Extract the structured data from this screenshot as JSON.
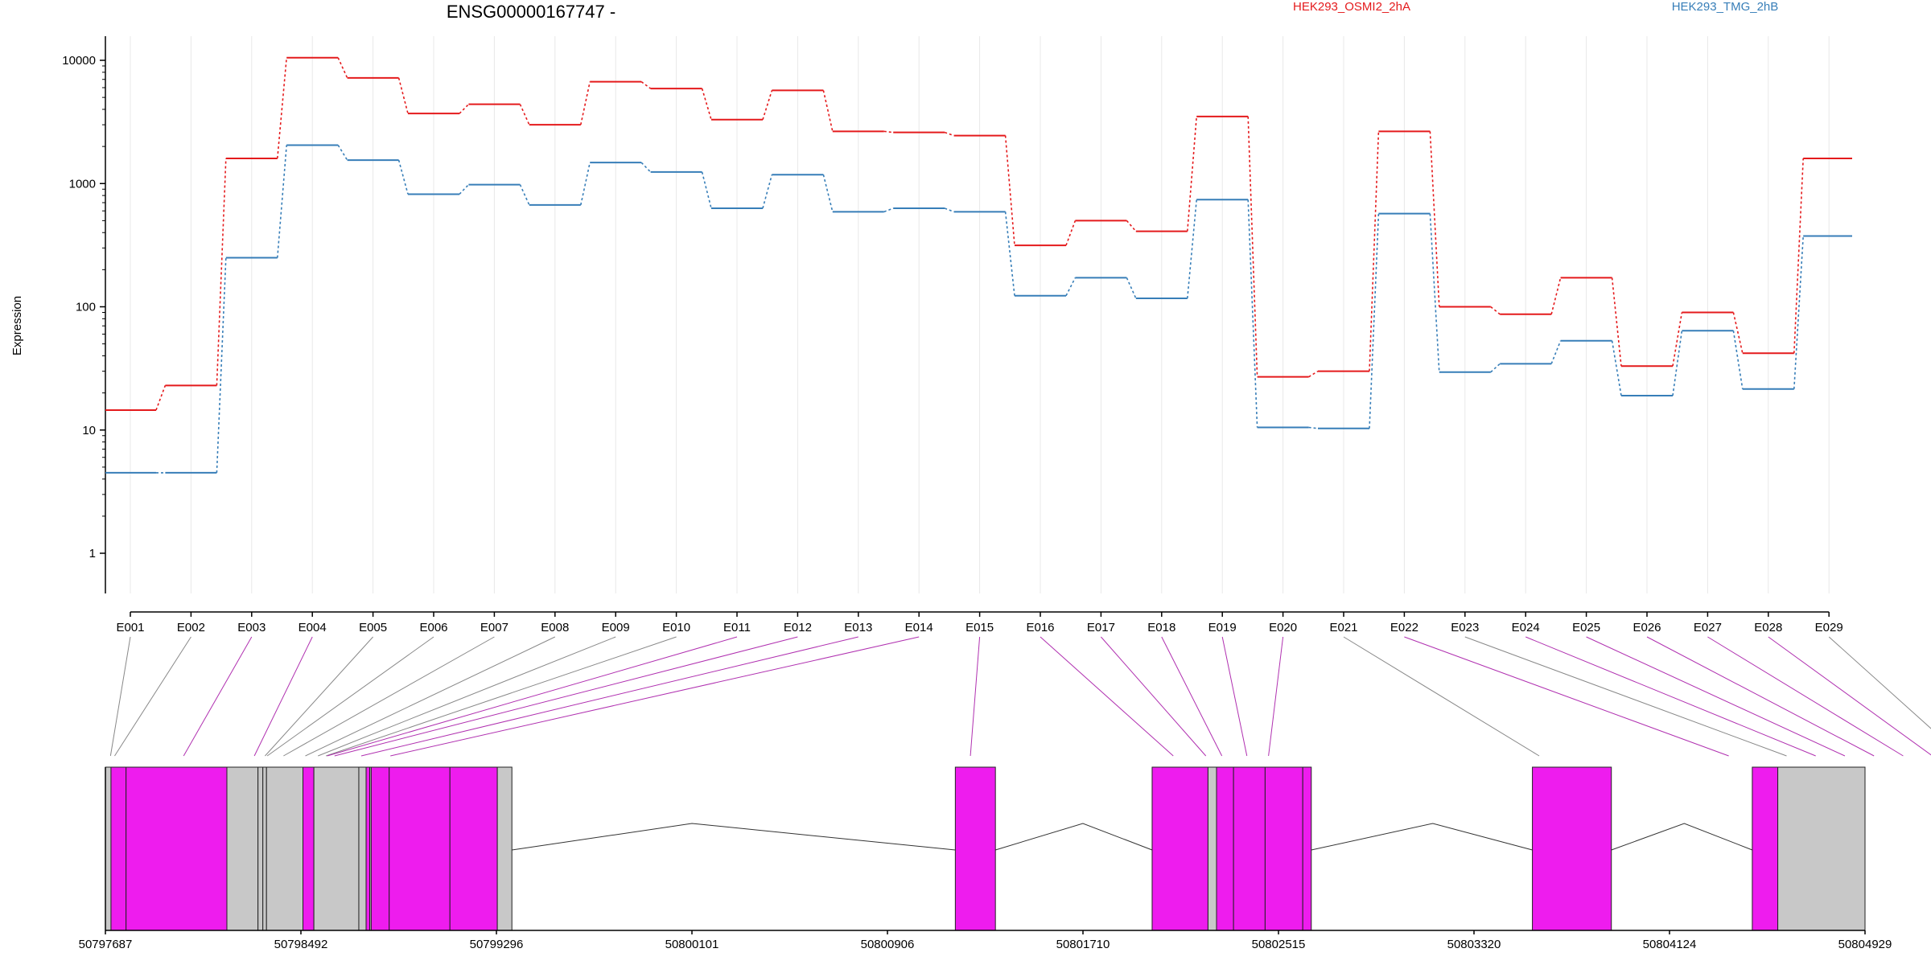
{
  "title": "ENSG00000167747 -",
  "colors": {
    "red": "#e41a1c",
    "blue": "#377eb8",
    "magenta": "#ee1cee",
    "gray": "#c8c8c8"
  },
  "chart_data": {
    "type": "line",
    "title": "ENSG00000167747 -",
    "ylabel": "Expression",
    "yscale": "log",
    "ylim": [
      0.5,
      14000
    ],
    "yticks": [
      "1",
      "10",
      "100",
      "1000",
      "10000"
    ],
    "grid": true,
    "legend": "top",
    "categories": [
      "E001",
      "E002",
      "E003",
      "E004",
      "E005",
      "E006",
      "E007",
      "E008",
      "E009",
      "E010",
      "E011",
      "E012",
      "E013",
      "E014",
      "E015",
      "E016",
      "E017",
      "E018",
      "E019",
      "E020",
      "E021",
      "E022",
      "E023",
      "E024",
      "E025",
      "E026",
      "E027",
      "E028",
      "E029"
    ],
    "series": [
      {
        "name": "HEK293_OSMI2_2hA",
        "color": "#e41a1c",
        "values": [
          14.5,
          23,
          1600,
          10500,
          7200,
          3700,
          4400,
          3000,
          6700,
          5900,
          3300,
          5700,
          2650,
          2600,
          2450,
          315,
          500,
          410,
          3500,
          27,
          30,
          2650,
          100,
          87,
          172,
          33,
          90,
          42,
          1600
        ]
      },
      {
        "name": "HEK293_TMG_2hB",
        "color": "#377eb8",
        "values": [
          4.5,
          4.5,
          250,
          2050,
          1550,
          820,
          980,
          670,
          1480,
          1240,
          630,
          1180,
          590,
          630,
          590,
          123,
          172,
          117,
          740,
          10.5,
          10.3,
          570,
          29.5,
          34.5,
          53,
          19,
          64,
          21.5,
          375
        ]
      }
    ],
    "gene_model": {
      "genomic_ticks": [
        "50797687",
        "50798492",
        "50799296",
        "50800101",
        "50800906",
        "50801710",
        "50802515",
        "50803320",
        "50804124",
        "50804929"
      ],
      "range": [
        50797687,
        50804929
      ],
      "exon_positions": [
        50797708,
        50797725,
        50798009,
        50798300,
        50798344,
        50798353,
        50798420,
        50798510,
        50798562,
        50798595,
        50798600,
        50798630,
        50798740,
        50798860,
        50801247,
        50802082,
        50802216,
        50802282,
        50802385,
        50802474,
        50803588,
        50804368,
        50804606
      ],
      "exons": [
        {
          "start": 50797687,
          "end": 50797710,
          "type": "gray"
        },
        {
          "start": 50797710,
          "end": 50797772,
          "type": "magenta"
        },
        {
          "start": 50797772,
          "end": 50798187,
          "type": "magenta"
        },
        {
          "start": 50798187,
          "end": 50798315,
          "type": "gray"
        },
        {
          "start": 50798315,
          "end": 50798335,
          "type": "gray"
        },
        {
          "start": 50798335,
          "end": 50798350,
          "type": "gray"
        },
        {
          "start": 50798350,
          "end": 50798500,
          "type": "gray"
        },
        {
          "start": 50798500,
          "end": 50798545,
          "type": "magenta"
        },
        {
          "start": 50798545,
          "end": 50798730,
          "type": "gray"
        },
        {
          "start": 50798730,
          "end": 50798760,
          "type": "gray"
        },
        {
          "start": 50798760,
          "end": 50798775,
          "type": "magenta"
        },
        {
          "start": 50798775,
          "end": 50798781,
          "type": "gray"
        },
        {
          "start": 50798781,
          "end": 50798855,
          "type": "magenta"
        },
        {
          "start": 50798855,
          "end": 50799105,
          "type": "magenta"
        },
        {
          "start": 50799105,
          "end": 50799300,
          "type": "magenta"
        },
        {
          "start": 50799300,
          "end": 50799360,
          "type": "gray"
        },
        {
          "start": 50801185,
          "end": 50801350,
          "type": "magenta"
        },
        {
          "start": 50801995,
          "end": 50802225,
          "type": "magenta"
        },
        {
          "start": 50802225,
          "end": 50802260,
          "type": "gray"
        },
        {
          "start": 50802260,
          "end": 50802330,
          "type": "magenta"
        },
        {
          "start": 50802330,
          "end": 50802460,
          "type": "magenta"
        },
        {
          "start": 50802460,
          "end": 50802615,
          "type": "magenta"
        },
        {
          "start": 50802615,
          "end": 50802650,
          "type": "magenta"
        },
        {
          "start": 50803560,
          "end": 50803885,
          "type": "magenta"
        },
        {
          "start": 50804465,
          "end": 50804570,
          "type": "magenta"
        },
        {
          "start": 50804570,
          "end": 50804929,
          "type": "gray"
        }
      ],
      "introns": [
        {
          "start": 50799360,
          "end": 50801185,
          "peak": 50800101
        },
        {
          "start": 50801350,
          "end": 50801995,
          "peak": 50801710
        },
        {
          "start": 50802650,
          "end": 50803560,
          "peak": 50803150
        },
        {
          "start": 50803885,
          "end": 50804465,
          "peak": 50804185
        }
      ]
    }
  }
}
